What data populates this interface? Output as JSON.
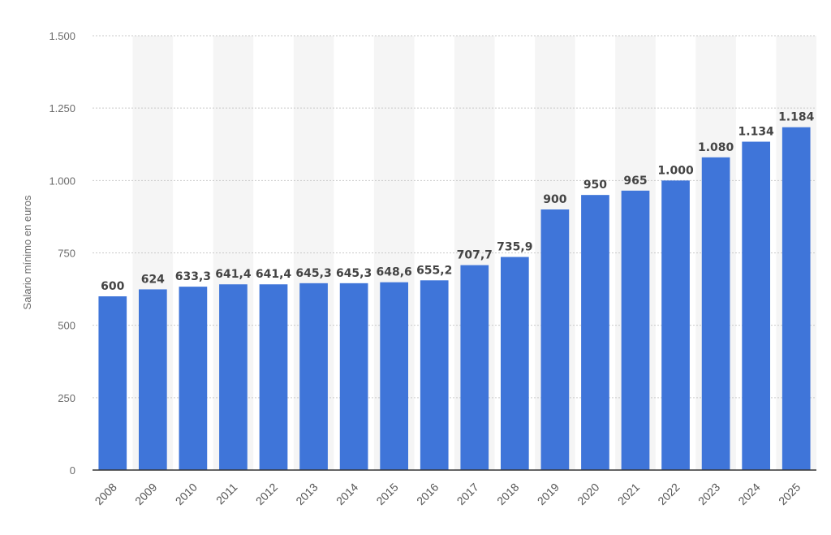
{
  "chart_data": {
    "type": "bar",
    "title": "",
    "xlabel": "",
    "ylabel": "Salario mínimo en euros",
    "ylim": [
      0,
      1500
    ],
    "yticks": [
      0,
      250,
      500,
      750,
      1000,
      1250,
      1500
    ],
    "ytick_labels": [
      "0",
      "250",
      "500",
      "750",
      "1.000",
      "1.250",
      "1.500"
    ],
    "grid": "horizontal dotted",
    "categories": [
      "2008",
      "2009",
      "2010",
      "2011",
      "2012",
      "2013",
      "2014",
      "2015",
      "2016",
      "2017",
      "2018",
      "2019",
      "2020",
      "2021",
      "2022",
      "2023",
      "2024",
      "2025"
    ],
    "values": [
      600,
      624,
      633.3,
      641.4,
      641.4,
      645.3,
      645.3,
      648.6,
      655.2,
      707.7,
      735.9,
      900,
      950,
      965,
      1000,
      1080,
      1134,
      1184
    ],
    "value_labels": [
      "600",
      "624",
      "633,3",
      "641,4",
      "641,4",
      "645,3",
      "645,3",
      "648,6",
      "655,2",
      "707,7",
      "735,9",
      "900",
      "950",
      "965",
      "1.000",
      "1.080",
      "1.134",
      "1.184"
    ],
    "colors": {
      "bar": "#3f75d9",
      "band": "#f5f5f5",
      "grid": "#c9c9c9",
      "axis": "#333333"
    }
  }
}
